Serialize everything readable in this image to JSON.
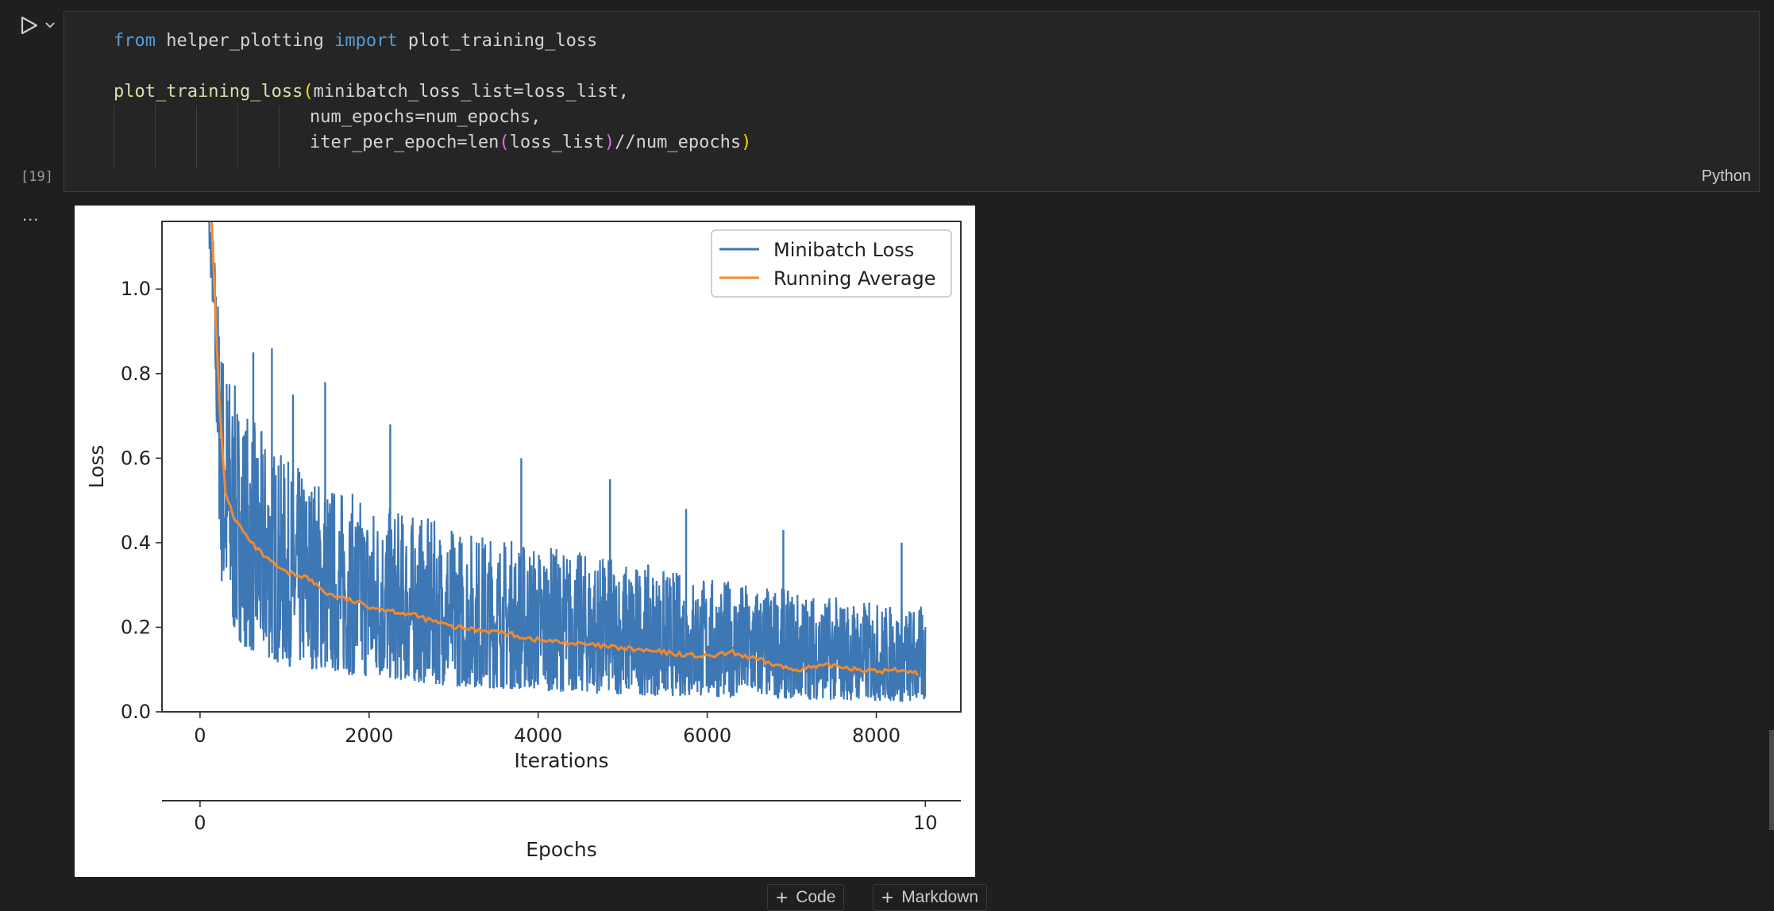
{
  "cell": {
    "execution_count": "[19]",
    "language": "Python",
    "output_ellipsis": "...",
    "code": {
      "line1": {
        "kw1": "from",
        "mod": " helper_plotting ",
        "kw2": "import",
        "name": " plot_training_loss"
      },
      "line2": {
        "fn": "plot_training_loss",
        "open": "(",
        "args": "minibatch_loss_list=loss_list,"
      },
      "line3": {
        "text": "num_epochs=num_epochs,"
      },
      "line4": {
        "pre": "iter_per_epoch=len",
        "open": "(",
        "arg": "loss_list",
        "close": ")",
        "post": "//num_epochs",
        "close2": ")"
      }
    }
  },
  "toolbar": {
    "add_code": "Code",
    "add_markdown": "Markdown"
  },
  "icons": {
    "run": "play-icon",
    "chevron": "chevron-down-icon",
    "plus": "plus-icon"
  },
  "colors": {
    "series_loss": "#3d77b4",
    "series_avg": "#f5892a",
    "accent_bg": "#1f1f1f"
  },
  "chart_data": {
    "type": "line",
    "xlabel": "Iterations",
    "ylabel": "Loss",
    "xticks": [
      "0",
      "2000",
      "4000",
      "6000",
      "8000"
    ],
    "yticks": [
      "0.0",
      "0.2",
      "0.4",
      "0.6",
      "0.8",
      "1.0"
    ],
    "xlim": [
      -450,
      9000
    ],
    "ylim": [
      0,
      1.16
    ],
    "secondary_xaxis": {
      "label": "Epochs",
      "ticks": [
        "0",
        "10"
      ],
      "range": [
        0,
        10
      ]
    },
    "legend": {
      "position": "top-right",
      "entries": [
        "Minibatch Loss",
        "Running Average"
      ]
    },
    "series": [
      {
        "name": "Minibatch Loss",
        "color": "#3d77b4",
        "x_max": 8580,
        "upper_env": [
          [
            60,
            1.25
          ],
          [
            150,
            1.15
          ],
          [
            250,
            0.9
          ],
          [
            400,
            0.78
          ],
          [
            600,
            0.7
          ],
          [
            1000,
            0.6
          ],
          [
            1500,
            0.55
          ],
          [
            2000,
            0.5
          ],
          [
            3000,
            0.44
          ],
          [
            4000,
            0.4
          ],
          [
            5000,
            0.36
          ],
          [
            6000,
            0.32
          ],
          [
            7000,
            0.29
          ],
          [
            8000,
            0.26
          ],
          [
            8580,
            0.25
          ]
        ],
        "lower_env": [
          [
            60,
            1.25
          ],
          [
            150,
            0.95
          ],
          [
            250,
            0.3
          ],
          [
            400,
            0.18
          ],
          [
            600,
            0.14
          ],
          [
            1000,
            0.11
          ],
          [
            2000,
            0.08
          ],
          [
            3000,
            0.06
          ],
          [
            4000,
            0.05
          ],
          [
            5000,
            0.04
          ],
          [
            6000,
            0.035
          ],
          [
            7000,
            0.03
          ],
          [
            8000,
            0.025
          ],
          [
            8580,
            0.02
          ]
        ],
        "spikes": [
          [
            630,
            0.85
          ],
          [
            850,
            0.86
          ],
          [
            1100,
            0.75
          ],
          [
            1480,
            0.78
          ],
          [
            2250,
            0.68
          ],
          [
            3800,
            0.6
          ],
          [
            4850,
            0.55
          ],
          [
            5750,
            0.48
          ],
          [
            6900,
            0.43
          ],
          [
            8300,
            0.4
          ]
        ]
      },
      {
        "name": "Running Average",
        "color": "#f5892a",
        "points": [
          [
            120,
            1.25
          ],
          [
            180,
            0.95
          ],
          [
            230,
            0.72
          ],
          [
            300,
            0.52
          ],
          [
            400,
            0.46
          ],
          [
            600,
            0.4
          ],
          [
            800,
            0.36
          ],
          [
            1000,
            0.33
          ],
          [
            1250,
            0.32
          ],
          [
            1500,
            0.28
          ],
          [
            2000,
            0.25
          ],
          [
            2500,
            0.23
          ],
          [
            3000,
            0.2
          ],
          [
            3500,
            0.19
          ],
          [
            4000,
            0.17
          ],
          [
            5000,
            0.15
          ],
          [
            6000,
            0.13
          ],
          [
            6300,
            0.14
          ],
          [
            7000,
            0.1
          ],
          [
            7500,
            0.11
          ],
          [
            8000,
            0.095
          ],
          [
            8300,
            0.1
          ],
          [
            8500,
            0.09
          ]
        ]
      }
    ]
  }
}
